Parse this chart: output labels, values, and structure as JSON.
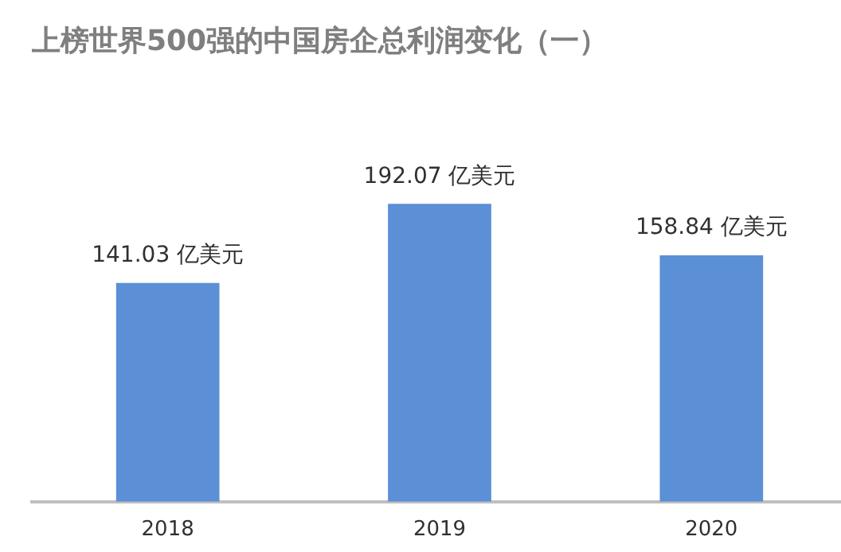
{
  "chart_data": {
    "type": "bar",
    "title": "上榜世界500强的中国房企总利润变化（一）",
    "categories": [
      "2018",
      "2019",
      "2020"
    ],
    "values": [
      141.03,
      192.07,
      158.84
    ],
    "value_labels": [
      "141.03 亿美元",
      "192.07 亿美元",
      "158.84 亿美元"
    ],
    "color": "#5b8fd6",
    "grid": false,
    "legend": false
  }
}
